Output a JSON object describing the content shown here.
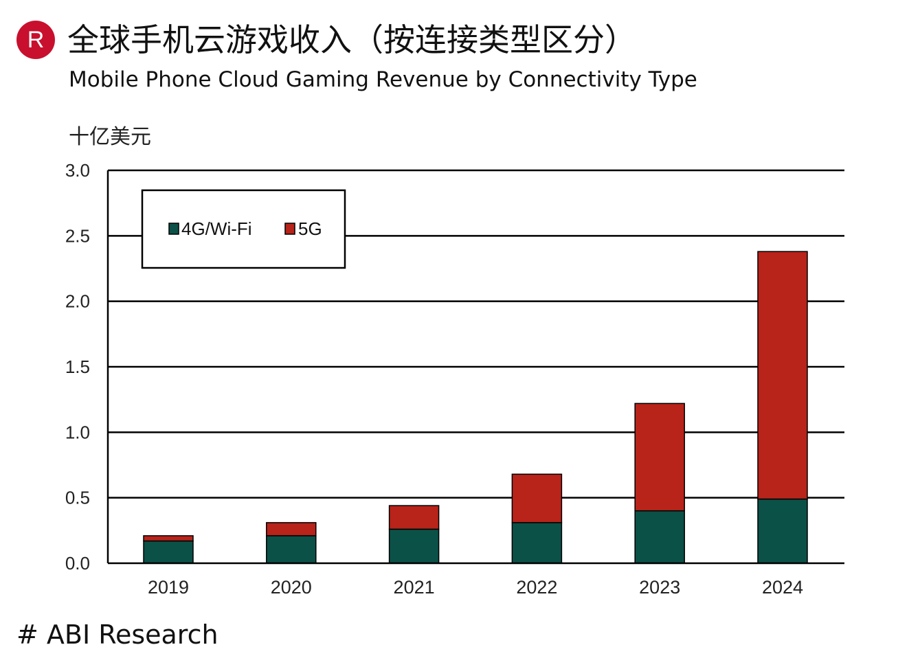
{
  "logo": {
    "letter": "R",
    "color": "#c8102e"
  },
  "title_cn": "全球手机云游戏收入（按连接类型区分）",
  "title_en": "Mobile Phone Cloud Gaming Revenue by Connectivity Type",
  "unit_label": "十亿美元",
  "source": "# ABI Research",
  "chart_data": {
    "type": "bar",
    "stacked": true,
    "categories": [
      "2019",
      "2020",
      "2021",
      "2022",
      "2023",
      "2024"
    ],
    "series": [
      {
        "name": "4G/Wi-Fi",
        "color": "#0b5148",
        "values": [
          0.17,
          0.21,
          0.26,
          0.31,
          0.4,
          0.49
        ]
      },
      {
        "name": "5G",
        "color": "#b8231a",
        "values": [
          0.04,
          0.1,
          0.18,
          0.37,
          0.82,
          1.89
        ]
      }
    ],
    "ylim": [
      0,
      3.0
    ],
    "yticks": [
      "0.0",
      "0.5",
      "1.0",
      "1.5",
      "2.0",
      "2.5",
      "3.0"
    ],
    "ylabel": "十亿美元",
    "xlabel": "",
    "grid": true,
    "legend_position": "top-left"
  }
}
